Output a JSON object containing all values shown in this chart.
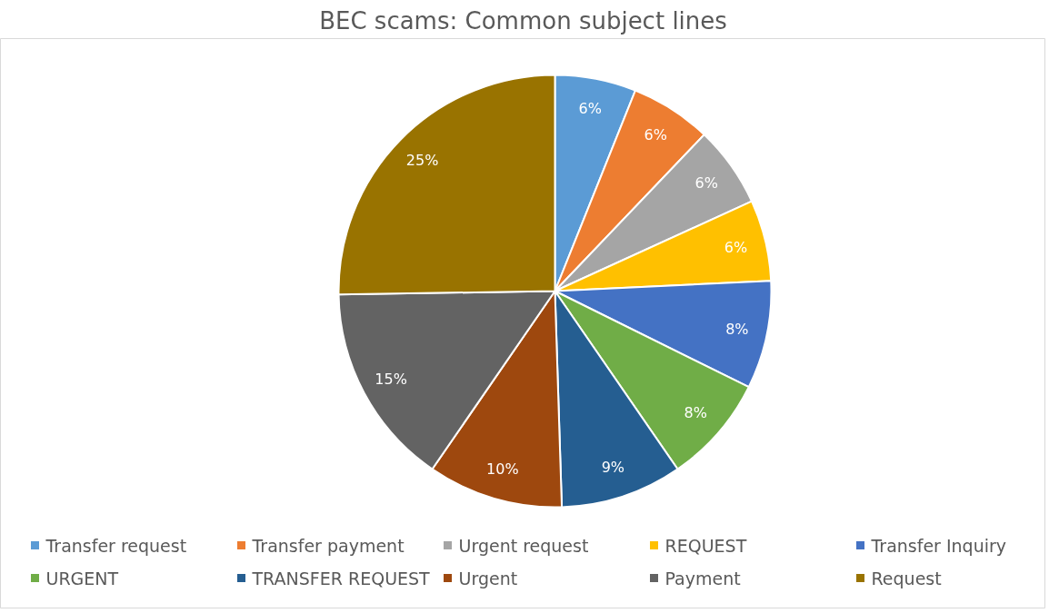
{
  "chart_data": {
    "type": "pie",
    "title": "BEC scams: Common subject lines",
    "categories": [
      "Transfer request",
      "Transfer payment",
      "Urgent request",
      "REQUEST",
      "Transfer Inquiry",
      "URGENT",
      "TRANSFER REQUEST",
      "Urgent",
      "Payment",
      "Request"
    ],
    "values": [
      6,
      6,
      6,
      6,
      8,
      8,
      9,
      10,
      15,
      25
    ],
    "colors": [
      "#5b9bd5",
      "#ed7d31",
      "#a5a5a5",
      "#ffc000",
      "#4472c4",
      "#70ad47",
      "#255e91",
      "#9e480e",
      "#636363",
      "#997300"
    ],
    "value_labels": [
      "6%",
      "6%",
      "6%",
      "6%",
      "8%",
      "8%",
      "9%",
      "10%",
      "15%",
      "25%"
    ],
    "legend": "bottom"
  }
}
